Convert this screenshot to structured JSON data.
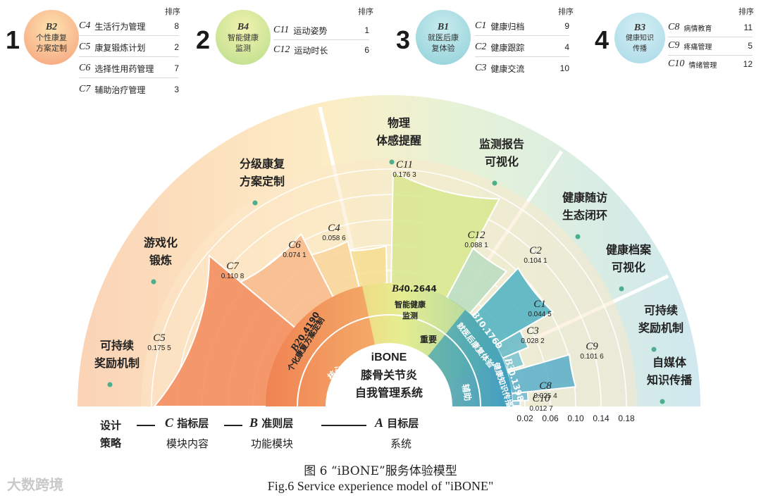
{
  "header": {
    "rank_heading": "排序",
    "groups": [
      {
        "rank": "1",
        "id": "B2",
        "name_line1": "个性康复",
        "name_line2": "方案定制",
        "color": "#f6a07a",
        "items": [
          {
            "id": "C4",
            "label": "生活行为管理",
            "rank": "8"
          },
          {
            "id": "C5",
            "label": "康复锻炼计划",
            "rank": "2"
          },
          {
            "id": "C6",
            "label": "选择性用药管理",
            "rank": "7"
          },
          {
            "id": "C7",
            "label": "辅助治疗管理",
            "rank": "3"
          }
        ]
      },
      {
        "rank": "2",
        "id": "B4",
        "name_line1": "智能健康",
        "name_line2": "监测",
        "color": "#c9e08a",
        "items": [
          {
            "id": "C11",
            "label": "运动姿势",
            "rank": "1"
          },
          {
            "id": "C12",
            "label": "运动时长",
            "rank": "6"
          }
        ]
      },
      {
        "rank": "3",
        "id": "B1",
        "name_line1": "就医后康",
        "name_line2": "复体验",
        "color": "#8fd0d8",
        "items": [
          {
            "id": "C1",
            "label": "健康归档",
            "rank": "9"
          },
          {
            "id": "C2",
            "label": "健康跟踪",
            "rank": "4"
          },
          {
            "id": "C3",
            "label": "健康交流",
            "rank": "10"
          }
        ]
      },
      {
        "rank": "4",
        "id": "B3",
        "name_line1": "健康知识",
        "name_line2": "传播",
        "color": "#a7d9e6",
        "items": [
          {
            "id": "C8",
            "label": "病情教育",
            "rank": "11"
          },
          {
            "id": "C9",
            "label": "疼痛管理",
            "rank": "5"
          },
          {
            "id": "C10",
            "label": "情绪管理",
            "rank": "12"
          }
        ]
      }
    ]
  },
  "chart_data": {
    "type": "polar-bar",
    "center_title": "iBONE",
    "center_line2": "膝骨关节炎",
    "center_line3": "自我管理系统",
    "criteria": [
      {
        "id": "B2",
        "weight": "0.4190",
        "name": "个化康复方案定制",
        "band": "核心",
        "color": "#f07a4a"
      },
      {
        "id": "B4",
        "weight": "0.2644",
        "name_line1": "智能健康",
        "name_line2": "监测",
        "band": "重要",
        "color": "#dbe88a"
      },
      {
        "id": "B1",
        "weight": "0.1769",
        "name": "就医后康复体验",
        "band": "",
        "color": "#4fb0c0"
      },
      {
        "id": "B3",
        "weight": "0.1398",
        "name": "健康知识传播",
        "band": "辅助",
        "color": "#5aaac8"
      }
    ],
    "indicators": [
      {
        "id": "C5",
        "value": 0.1755,
        "label": "0.175 5",
        "sector": "B2"
      },
      {
        "id": "C7",
        "value": 0.1108,
        "label": "0.110 8",
        "sector": "B2"
      },
      {
        "id": "C6",
        "value": 0.0741,
        "label": "0.074 1",
        "sector": "B2"
      },
      {
        "id": "C4",
        "value": 0.0586,
        "label": "0.058 6",
        "sector": "B2"
      },
      {
        "id": "C11",
        "value": 0.1763,
        "label": "0.176 3",
        "sector": "B4"
      },
      {
        "id": "C12",
        "value": 0.0881,
        "label": "0.088 1",
        "sector": "B4"
      },
      {
        "id": "C2",
        "value": 0.1041,
        "label": "0.104 1",
        "sector": "B1"
      },
      {
        "id": "C1",
        "value": 0.0445,
        "label": "0.044 5",
        "sector": "B1"
      },
      {
        "id": "C3",
        "value": 0.0282,
        "label": "0.028 2",
        "sector": "B1"
      },
      {
        "id": "C9",
        "value": 0.1016,
        "label": "0.101 6",
        "sector": "B3"
      },
      {
        "id": "C8",
        "value": 0.0254,
        "label": "0.025 4",
        "sector": "B3"
      },
      {
        "id": "C10",
        "value": 0.0127,
        "label": "0.012 7",
        "sector": "B3"
      }
    ],
    "radial_ticks": [
      "0.02",
      "0.06",
      "0.10",
      "0.14",
      "0.18"
    ],
    "strategies": [
      {
        "line1": "可持续",
        "line2": "奖励机制"
      },
      {
        "line1": "游戏化",
        "line2": "锻炼"
      },
      {
        "line1": "分级康复",
        "line2": "方案定制"
      },
      {
        "line1": "物理",
        "line2": "体感提醒"
      },
      {
        "line1": "监测报告",
        "line2": "可视化"
      },
      {
        "line1": "健康随访",
        "line2": "生态闭环"
      },
      {
        "line1": "健康档案",
        "line2": "可视化"
      },
      {
        "line1": "可持续",
        "line2": "奖励机制"
      },
      {
        "line1": "自媒体",
        "line2": "知识传播"
      }
    ]
  },
  "legend": {
    "design_line1": "设计",
    "design_line2": "策略",
    "c_letter": "C",
    "c_title": "指标层",
    "c_sub": "模块内容",
    "b_letter": "B",
    "b_title": "准则层",
    "b_sub": "功能模块",
    "a_letter": "A",
    "a_title": "目标层",
    "a_sub": "系统"
  },
  "caption": {
    "cn": "图 6 “iBONE”服务体验模型",
    "en": "Fig.6 Service experience model of \"iBONE\""
  },
  "watermark": "大数跨境"
}
